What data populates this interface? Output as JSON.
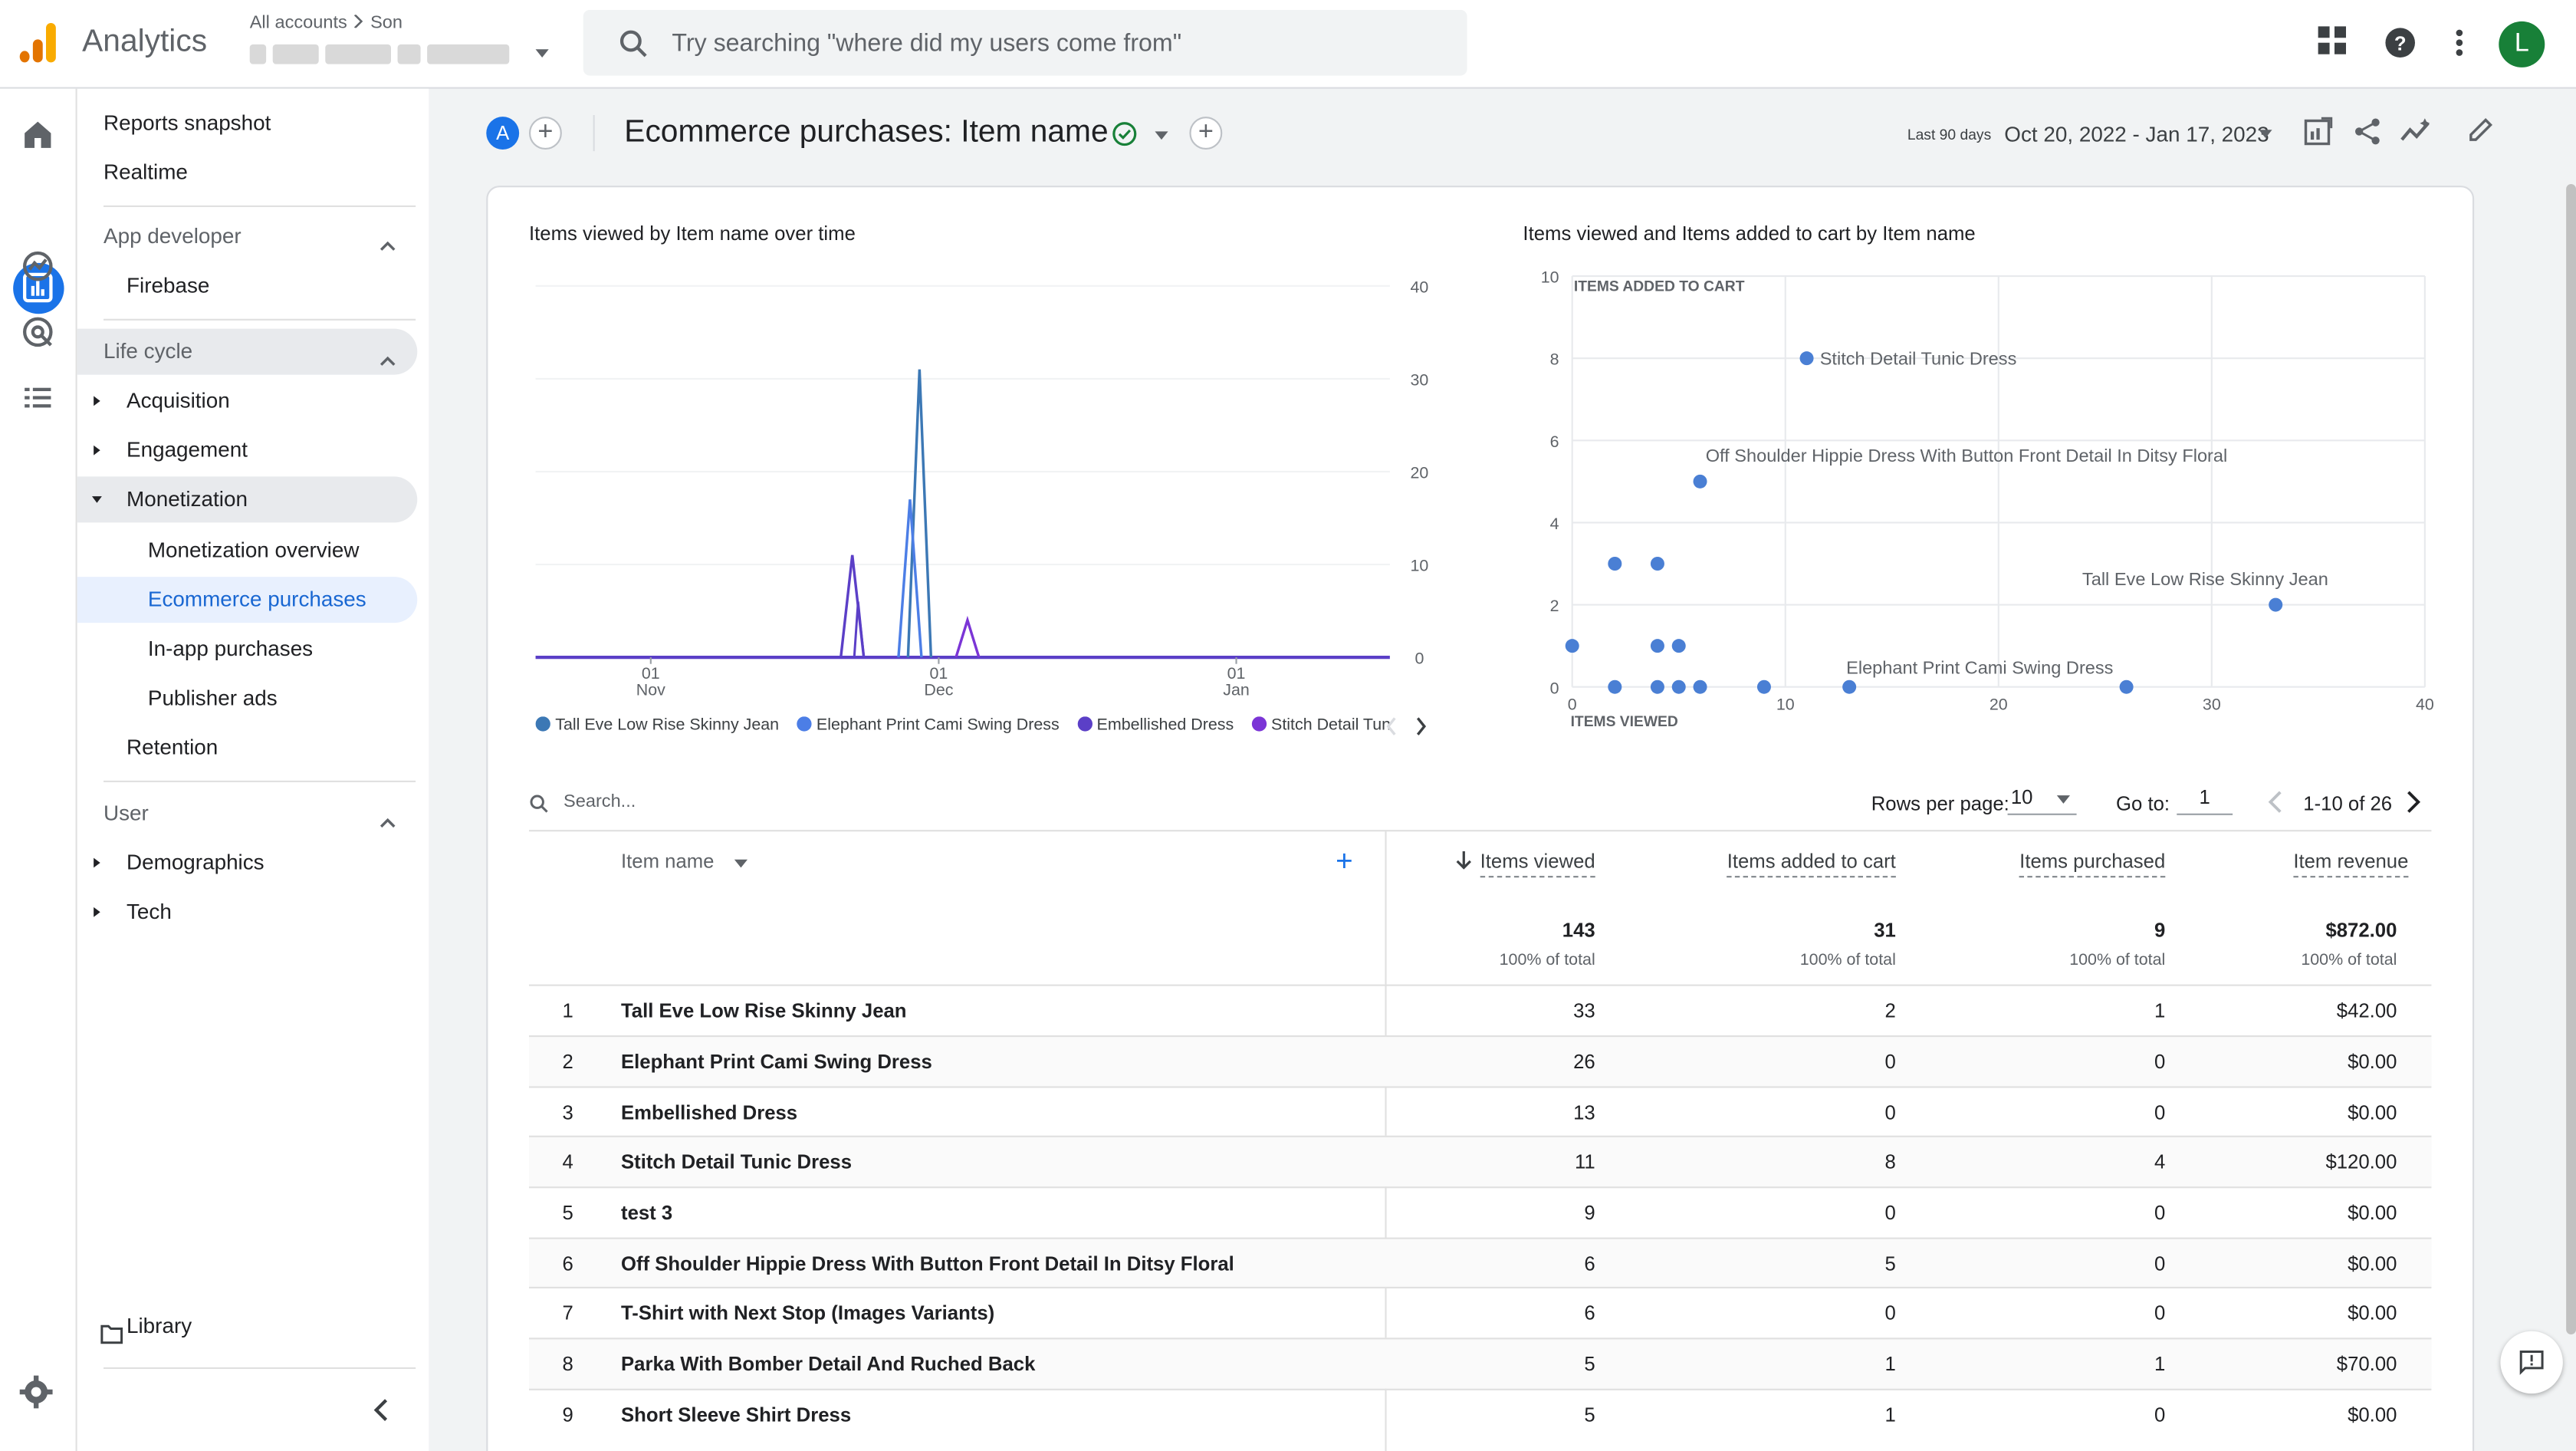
{
  "app": {
    "name": "Analytics",
    "accounts_crumb": "All accounts",
    "accounts_child": "Son",
    "search_placeholder": "Try searching \"where did my users come from\"",
    "avatar_letter": "L",
    "brand_colors": {
      "primary": "#1a73e8",
      "orange": "#f9ab00",
      "orange_dark": "#e37400"
    }
  },
  "sidebar": {
    "items": [
      {
        "label": "Reports snapshot"
      },
      {
        "label": "Realtime"
      },
      {
        "label": "App developer"
      },
      {
        "label": "Firebase"
      },
      {
        "label": "Life cycle"
      },
      {
        "label": "Acquisition"
      },
      {
        "label": "Engagement"
      },
      {
        "label": "Monetization"
      },
      {
        "label": "Monetization overview"
      },
      {
        "label": "Ecommerce purchases"
      },
      {
        "label": "In-app purchases"
      },
      {
        "label": "Publisher ads"
      },
      {
        "label": "Retention"
      },
      {
        "label": "User"
      },
      {
        "label": "Demographics"
      },
      {
        "label": "Tech"
      }
    ],
    "library": "Library"
  },
  "header": {
    "comparison_chip": "A",
    "title": "Ecommerce purchases: Item name",
    "range_label": "Last 90 days",
    "range_value": "Oct 20, 2022 - Jan 17, 2023"
  },
  "line_chart": {
    "title": "Items viewed by Item name over time",
    "x_ticks": [
      {
        "day": "01",
        "month": "Nov"
      },
      {
        "day": "01",
        "month": "Dec"
      },
      {
        "day": "01",
        "month": "Jan"
      }
    ],
    "y_ticks": [
      "40",
      "30",
      "20",
      "10",
      "0"
    ],
    "legend": [
      {
        "name": "Tall Eve Low Rise Skinny Jean",
        "color": "#3c78b5"
      },
      {
        "name": "Elephant Print Cami Swing Dress",
        "color": "#4c7ee6"
      },
      {
        "name": "Embellished Dress",
        "color": "#5b3fc7"
      },
      {
        "name": "Stitch Detail Tunic Dress",
        "color": "#7b35d6"
      }
    ]
  },
  "scatter_chart": {
    "title": "Items viewed and Items added to cart by Item name",
    "y_axis_label": "ITEMS ADDED TO CART",
    "x_axis_label": "ITEMS VIEWED",
    "x_ticks": [
      "0",
      "10",
      "20",
      "30",
      "40"
    ],
    "y_ticks": [
      "10",
      "8",
      "6",
      "4",
      "2",
      "0"
    ],
    "point_labels": [
      "Stitch Detail Tunic Dress",
      "Off Shoulder Hippie Dress With Button Front Detail In Ditsy Floral",
      "Tall Eve Low Rise Skinny Jean",
      "Elephant Print Cami Swing Dress"
    ]
  },
  "table": {
    "search_placeholder": "Search...",
    "rows_per_page_label": "Rows per page:",
    "rows_per_page": "10",
    "goto_label": "Go to:",
    "goto_value": "1",
    "page_range": "1-10 of 26",
    "dimension_header": "Item name",
    "columns": [
      "Items viewed",
      "Items added to cart",
      "Items purchased",
      "Item revenue"
    ],
    "totals": [
      "143",
      "31",
      "9",
      "$872.00"
    ],
    "totals_sub": [
      "100% of total",
      "100% of total",
      "100% of total",
      "100% of total"
    ],
    "rows": [
      {
        "idx": "1",
        "name": "Tall Eve Low Rise Skinny Jean",
        "viewed": "33",
        "cart": "2",
        "purchased": "1",
        "revenue": "$42.00"
      },
      {
        "idx": "2",
        "name": "Elephant Print Cami Swing Dress",
        "viewed": "26",
        "cart": "0",
        "purchased": "0",
        "revenue": "$0.00"
      },
      {
        "idx": "3",
        "name": "Embellished Dress",
        "viewed": "13",
        "cart": "0",
        "purchased": "0",
        "revenue": "$0.00"
      },
      {
        "idx": "4",
        "name": "Stitch Detail Tunic Dress",
        "viewed": "11",
        "cart": "8",
        "purchased": "4",
        "revenue": "$120.00"
      },
      {
        "idx": "5",
        "name": "test 3",
        "viewed": "9",
        "cart": "0",
        "purchased": "0",
        "revenue": "$0.00"
      },
      {
        "idx": "6",
        "name": "Off Shoulder Hippie Dress With Button Front Detail In Ditsy Floral",
        "viewed": "6",
        "cart": "5",
        "purchased": "0",
        "revenue": "$0.00"
      },
      {
        "idx": "7",
        "name": "T-Shirt with Next Stop (Images Variants)",
        "viewed": "6",
        "cart": "0",
        "purchased": "0",
        "revenue": "$0.00"
      },
      {
        "idx": "8",
        "name": "Parka With Bomber Detail And Ruched Back",
        "viewed": "5",
        "cart": "1",
        "purchased": "1",
        "revenue": "$70.00"
      },
      {
        "idx": "9",
        "name": "Short Sleeve Shirt Dress",
        "viewed": "5",
        "cart": "1",
        "purchased": "0",
        "revenue": "$0.00"
      }
    ]
  },
  "chart_data": [
    {
      "type": "line",
      "title": "Items viewed by Item name over time",
      "x_ticks": [
        "01 Nov",
        "01 Dec",
        "01 Jan"
      ],
      "ylim": [
        0,
        40
      ],
      "legend_position": "bottom",
      "series": [
        {
          "name": "Tall Eve Low Rise Skinny Jean",
          "peak": 31,
          "peak_date": "Nov 28"
        },
        {
          "name": "Elephant Print Cami Swing Dress",
          "peak": 17,
          "peak_date": "Nov 27"
        },
        {
          "name": "Embellished Dress",
          "peak": 11,
          "peak_date": "Nov 21"
        },
        {
          "name": "Stitch Detail Tunic Dress",
          "peak": 4,
          "peak_date": "Dec 3"
        }
      ]
    },
    {
      "type": "scatter",
      "title": "Items viewed and Items added to cart by Item name",
      "xlabel": "ITEMS VIEWED",
      "ylabel": "ITEMS ADDED TO CART",
      "xlim": [
        0,
        40
      ],
      "ylim": [
        0,
        10
      ],
      "points": [
        {
          "x": 11,
          "y": 8,
          "label": "Stitch Detail Tunic Dress"
        },
        {
          "x": 6,
          "y": 5,
          "label": "Off Shoulder Hippie Dress With Button Front Detail In Ditsy Floral"
        },
        {
          "x": 33,
          "y": 2,
          "label": "Tall Eve Low Rise Skinny Jean"
        },
        {
          "x": 26,
          "y": 0,
          "label": "Elephant Print Cami Swing Dress"
        },
        {
          "x": 13,
          "y": 0
        },
        {
          "x": 9,
          "y": 0
        },
        {
          "x": 2,
          "y": 3
        },
        {
          "x": 4,
          "y": 3
        },
        {
          "x": 4,
          "y": 1
        },
        {
          "x": 5,
          "y": 1
        },
        {
          "x": 0,
          "y": 1
        },
        {
          "x": 2,
          "y": 0
        },
        {
          "x": 4,
          "y": 0
        },
        {
          "x": 5,
          "y": 0
        },
        {
          "x": 6,
          "y": 0
        }
      ]
    }
  ]
}
